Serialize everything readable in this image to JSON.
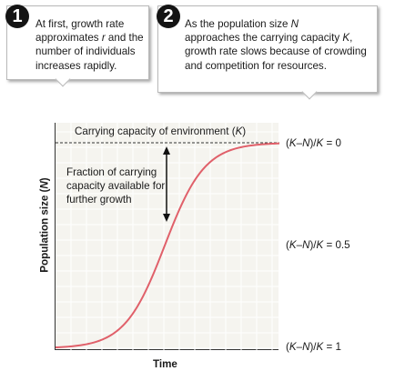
{
  "callouts": [
    {
      "number": "1",
      "lines": [
        "At first, growth rate",
        "approximates ##r## and the",
        "number of individuals",
        "increases rapidly."
      ]
    },
    {
      "number": "2",
      "lines": [
        "As the population size ##N##",
        "approaches the carrying capacity ##K##,",
        "growth rate slows because of crowding",
        "and competition for resources."
      ]
    }
  ],
  "plot": {
    "carrying_capacity_label": "Carrying capacity of environment (##K##)",
    "fraction_label": "Fraction of carrying capacity available for further growth",
    "y_axis_label": "Population size (##N##)",
    "x_axis_label": "Time",
    "right_labels": [
      "(##K##–##N##)/##K## = 0",
      "(##K##–##N##)/##K## = 0.5",
      "(##K##–##N##)/##K## = 1"
    ],
    "curve_color": "#e0606a",
    "grid_color": "#ffffff",
    "background_color": "#f5f4ef"
  }
}
